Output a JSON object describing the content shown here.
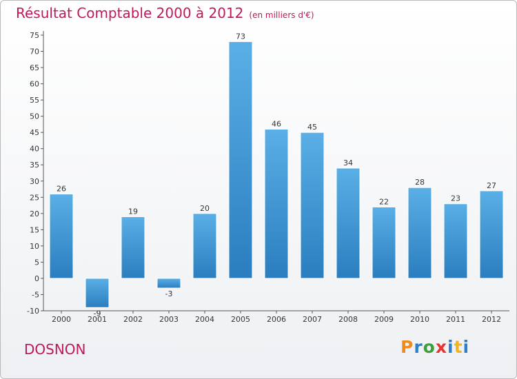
{
  "chart_data": {
    "type": "bar",
    "title": "Résultat Comptable 2000 à 2012",
    "subtitle": "(en milliers d'€)",
    "categories": [
      "2000",
      "2001",
      "2002",
      "2003",
      "2004",
      "2005",
      "2006",
      "2007",
      "2008",
      "2009",
      "2010",
      "2011",
      "2012"
    ],
    "values": [
      26,
      -9,
      19,
      -3,
      20,
      73,
      46,
      45,
      34,
      22,
      28,
      23,
      27
    ],
    "value_labels": [
      "26",
      "-9",
      "19",
      "-3",
      "20",
      "73",
      "46",
      "45",
      "34",
      "22",
      "28",
      "23",
      "27"
    ],
    "ylim": [
      -10,
      75
    ],
    "yticks": [
      -10,
      -5,
      0,
      5,
      10,
      15,
      20,
      25,
      30,
      35,
      40,
      45,
      50,
      55,
      60,
      65,
      70,
      75
    ],
    "xlabel": "",
    "ylabel": "",
    "grid": false,
    "legend": "none"
  },
  "footer": {
    "commune": "DOSNON",
    "brand": [
      "P",
      "r",
      "o",
      "x",
      "i",
      "t",
      "i"
    ]
  },
  "colors": {
    "bar_top": "#5aafe6",
    "bar_bottom": "#2a7ebf",
    "title": "#c0185a",
    "axis": "#555555",
    "brand": [
      "#f08a1c",
      "#2e7fc7",
      "#3aa03a",
      "#e8342f",
      "#2e7fc7",
      "#f0b41c",
      "#2e7fc7"
    ]
  }
}
